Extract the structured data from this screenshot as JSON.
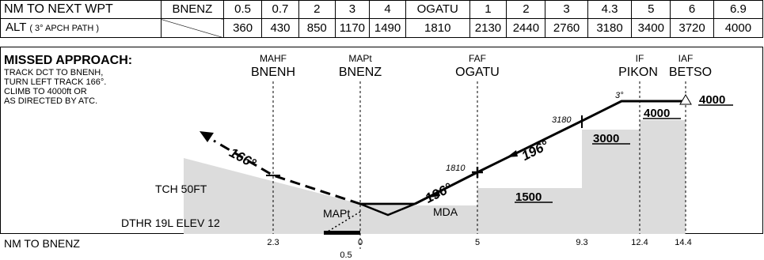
{
  "table": {
    "row1_label": "NM TO NEXT WPT",
    "row1_cells": [
      "BNENZ",
      "0.5",
      "0.7",
      "2",
      "3",
      "4",
      "OGATU",
      "1",
      "2",
      "3",
      "4.3",
      "5",
      "6",
      "6.9"
    ],
    "row2_label": "ALT",
    "row2_label_note": "( 3° APCH PATH )",
    "row2_cells": [
      "",
      "360",
      "430",
      "850",
      "1170",
      "1490",
      "1810",
      "2130",
      "2440",
      "2760",
      "3180",
      "3400",
      "3720",
      "4000"
    ]
  },
  "missed_approach": {
    "heading": "MISSED APPROACH:",
    "lines": [
      "TRACK DCT TO BNENH,",
      "TURN LEFT TRACK 166°.",
      "CLIMB TO 4000ft OR",
      "AS DIRECTED BY ATC."
    ]
  },
  "fixes": [
    {
      "role": "MAHF",
      "name": "BNENH"
    },
    {
      "role": "MAPt",
      "name": "BNENZ"
    },
    {
      "role": "FAF",
      "name": "OGATU"
    },
    {
      "role": "IF",
      "name": "PIKON"
    },
    {
      "role": "IAF",
      "name": "BETSO"
    }
  ],
  "tracks": {
    "missed": "166°",
    "approach_lower": "196°",
    "approach_upper": "196°"
  },
  "altitudes": {
    "faf": "1810",
    "step": "3180",
    "path_angle": "3°"
  },
  "min_altitudes": [
    "1500",
    "3000",
    "4000",
    "4000"
  ],
  "labels": {
    "tch": "TCH 50FT",
    "dthr": "DTHR 19L ELEV 12",
    "mapt": "MAPt",
    "mda": "MDA",
    "distance_axis": "NM TO BNENZ"
  },
  "distances": [
    "2.3",
    "0",
    "0.5",
    "5",
    "9.3",
    "12.4",
    "14.4"
  ]
}
